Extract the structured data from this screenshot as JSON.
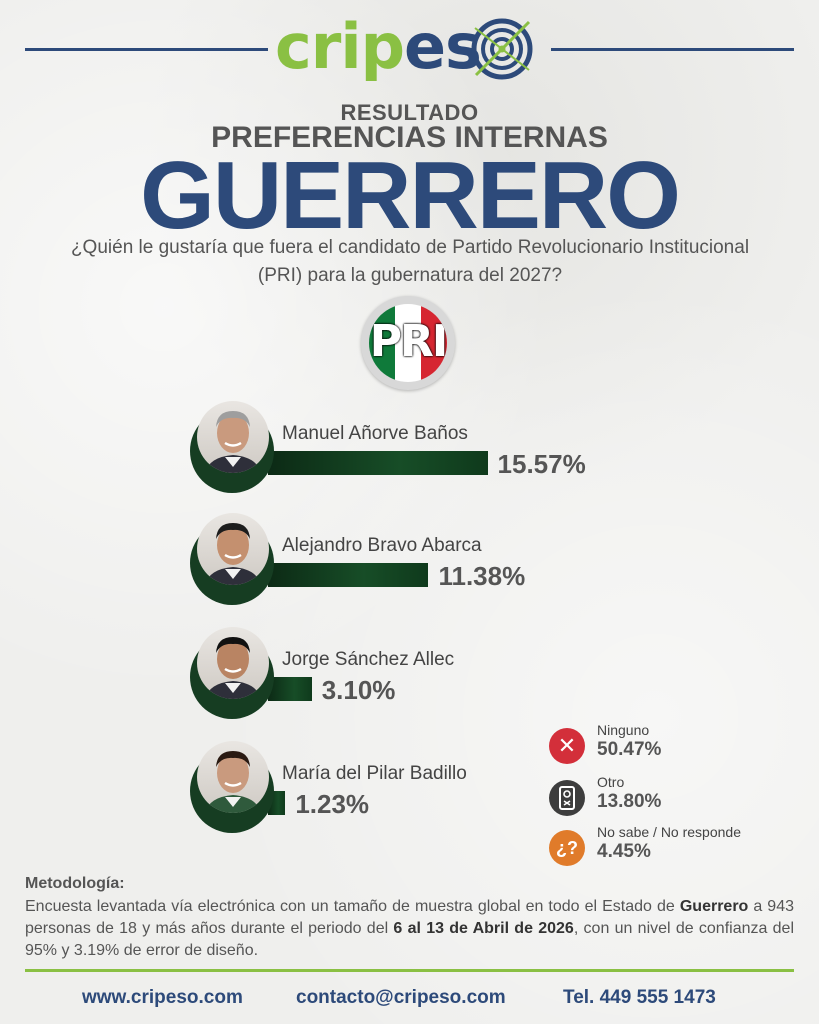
{
  "header": {
    "logo_part1": "crip",
    "logo_part2": "es",
    "logo_part3": "o"
  },
  "titles": {
    "resultado": "RESULTADO",
    "preferencias": "PREFERENCIAS INTERNAS",
    "state": "GUERRERO",
    "question": "¿Quién le gustaría que fuera el candidato de Partido Revolucionario Institucional (PRI) para la gubernatura del 2027?"
  },
  "party_logo": {
    "letters": "PRI",
    "colors": [
      "#0f7a3a",
      "#ffffff",
      "#d62631"
    ]
  },
  "chart_data": {
    "type": "bar",
    "orientation": "horizontal",
    "categories": [
      "Manuel Añorve Baños",
      "Alejandro Bravo Abarca",
      "Jorge Sánchez Allec",
      "María del Pilar Badillo"
    ],
    "values": [
      15.57,
      11.38,
      3.1,
      1.23
    ],
    "value_labels": [
      "15.57%",
      "11.38%",
      "3.10%",
      "1.23%"
    ],
    "unit": "%",
    "bar_color": "#174d27",
    "others": [
      {
        "label": "Ninguno",
        "value": 50.47,
        "value_label": "50.47%",
        "icon": "x-icon",
        "color": "#d32f3a"
      },
      {
        "label": "Otro",
        "value": 13.8,
        "value_label": "13.80%",
        "icon": "ballot-icon",
        "color": "#3d3d3d"
      },
      {
        "label": "No sabe / No responde",
        "value": 4.45,
        "value_label": "4.45%",
        "icon": "question-icon",
        "color": "#e07b2a"
      }
    ]
  },
  "methodology": {
    "title": "Metodología:",
    "part1": "Encuesta levantada vía electrónica con un tamaño de muestra global en todo el Estado de ",
    "bold1": "Guerrero",
    "part2": " a 943 personas de 18 y más años durante el periodo del ",
    "bold2": "6 al 13 de Abril de 2026",
    "part3": ", con un nivel de confianza del 95% y 3.19% de error de diseño."
  },
  "footer": {
    "website": "www.cripeso.com",
    "email": "contacto@cripeso.com",
    "phone": "Tel. 449 555 1473"
  }
}
